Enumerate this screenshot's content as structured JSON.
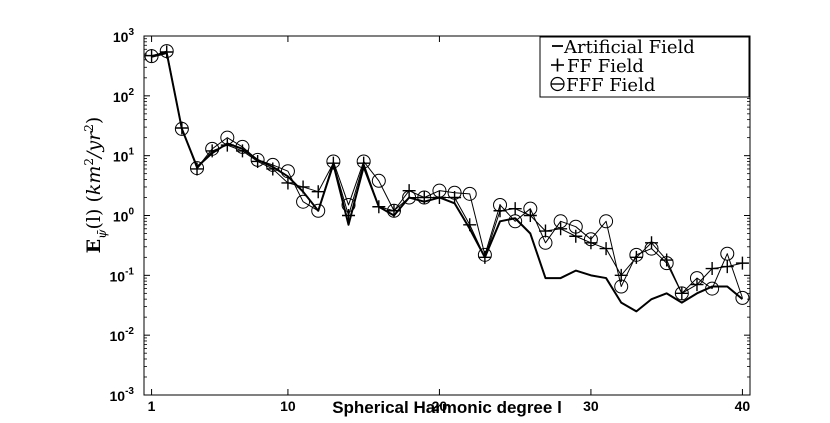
{
  "chart_data": {
    "type": "line",
    "title": "",
    "xlabel": "Spherical Harmonic degree l",
    "ylabel": "E_ψ̄(l) (km²/yr²)",
    "ylabel_parts": {
      "main": "E",
      "sub": "ψ̄",
      "paren": "(l)",
      "unit_open": "(",
      "unit_km": "km",
      "unit_exp1": "2",
      "unit_sep": "/yr",
      "unit_exp2": "2",
      "unit_close": ")"
    },
    "xlim": [
      0.5,
      40.5
    ],
    "ylim": [
      0.001,
      1000
    ],
    "yscale": "log",
    "x_ticks": [
      "1",
      "10",
      "20",
      "30",
      "40"
    ],
    "x_tick_values": [
      1,
      10,
      20,
      30,
      40
    ],
    "y_tick_base": "10",
    "y_tick_exponents": [
      "-3",
      "-2",
      "-1",
      "0",
      "1",
      "2",
      "3"
    ],
    "y_tick_values": [
      0.001,
      0.01,
      0.1,
      1,
      10,
      100,
      1000
    ],
    "grid": false,
    "legend_position": "top-right",
    "x": [
      1,
      2,
      3,
      4,
      5,
      6,
      7,
      8,
      9,
      10,
      11,
      12,
      13,
      14,
      15,
      16,
      17,
      18,
      19,
      20,
      21,
      22,
      23,
      24,
      25,
      26,
      27,
      28,
      29,
      30,
      31,
      32,
      33,
      34,
      35,
      36,
      37,
      38,
      39,
      40
    ],
    "series": [
      {
        "name": "Artificial Field",
        "marker": "none",
        "values": [
          450,
          520,
          28,
          6.5,
          11,
          16,
          13,
          8.5,
          6.5,
          4.5,
          2.5,
          1.2,
          7.2,
          0.7,
          6.5,
          1.4,
          1.0,
          2.0,
          1.7,
          2.0,
          1.6,
          0.6,
          0.2,
          0.8,
          0.9,
          0.5,
          0.09,
          0.09,
          0.12,
          0.1,
          0.09,
          0.035,
          0.025,
          0.04,
          0.05,
          0.035,
          0.05,
          0.065,
          0.065,
          0.04
        ]
      },
      {
        "name": "FF Field",
        "marker": "plus",
        "values": [
          470,
          540,
          29,
          6.0,
          12,
          15,
          12,
          8.0,
          6.0,
          3.5,
          3.0,
          2.5,
          7.5,
          1.0,
          7.5,
          1.4,
          1.2,
          2.6,
          2.0,
          2.0,
          2.0,
          0.7,
          0.2,
          1.2,
          1.3,
          1.0,
          0.55,
          0.6,
          0.45,
          0.35,
          0.28,
          0.1,
          0.2,
          0.35,
          0.18,
          0.05,
          0.07,
          0.13,
          0.14,
          0.16
        ]
      },
      {
        "name": "FFF Field",
        "marker": "circle",
        "values": [
          460,
          560,
          28,
          6.2,
          13,
          20,
          14,
          8.5,
          7.0,
          5.5,
          1.7,
          1.2,
          8.0,
          1.5,
          8.0,
          3.8,
          1.2,
          2.0,
          2.0,
          2.6,
          2.4,
          2.3,
          0.22,
          1.5,
          0.8,
          1.3,
          0.35,
          0.8,
          0.65,
          0.4,
          0.8,
          0.065,
          0.22,
          0.28,
          0.16,
          0.05,
          0.09,
          0.06,
          0.23,
          0.042
        ]
      }
    ]
  }
}
